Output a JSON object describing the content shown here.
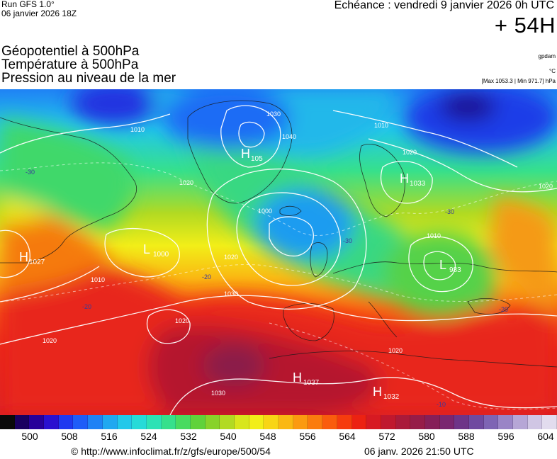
{
  "header": {
    "run": "Run GFS 1.0°",
    "run_date": "06 janvier 2026 18Z",
    "echeance": "Echéance : vendredi 9 janvier 2026 0h UTC",
    "lead": "+ 54H"
  },
  "titles": [
    "Géopotentiel à 500hPa",
    "Température à 500hPa",
    "Pression au niveau de la mer"
  ],
  "units": {
    "geopotential": "gpdam",
    "temperature": "°C",
    "pressure": "[Max 1053.3 | Min 971.7] hPa"
  },
  "map": {
    "pressure_centers": [
      {
        "type": "H",
        "value": "1027"
      },
      {
        "type": "L",
        "value": "1000"
      },
      {
        "type": "H",
        "value": "105"
      },
      {
        "type": "H",
        "value": "1033"
      },
      {
        "type": "L",
        "value": "983"
      },
      {
        "type": "H",
        "value": "1037"
      },
      {
        "type": "H",
        "value": "1032"
      }
    ],
    "isobar_labels": [
      "1010",
      "1020",
      "1030",
      "1040",
      "1000",
      "1010",
      "1020",
      "1010",
      "1020",
      "1020",
      "1010",
      "1020",
      "1030",
      "1030",
      "1020",
      "1020"
    ],
    "isotherm_labels": [
      "-30",
      "-20",
      "-20",
      "-30",
      "-30",
      "-20",
      "-10"
    ]
  },
  "legend": {
    "colors": [
      "#0a0a0a",
      "#1a0060",
      "#28009a",
      "#2a10d0",
      "#1f38f0",
      "#1e5cf8",
      "#1f82f5",
      "#20a8f0",
      "#22c8ea",
      "#26dbd8",
      "#2de2b5",
      "#36e08c",
      "#48db60",
      "#60d23a",
      "#88d22a",
      "#b2da22",
      "#d8e61c",
      "#f2ee18",
      "#f8d515",
      "#fab812",
      "#fb9a10",
      "#fb7c0e",
      "#fa5c0d",
      "#f63c0e",
      "#ec2212",
      "#d71a22",
      "#c0182e",
      "#aa1a3a",
      "#961c48",
      "#861f58",
      "#7a2670",
      "#6e3488",
      "#6f4aa0",
      "#7e64b4",
      "#9a84c6",
      "#b6a6d6",
      "#d0c6e4",
      "#e2dcee"
    ],
    "labels": [
      "500",
      "508",
      "516",
      "524",
      "532",
      "540",
      "548",
      "556",
      "564",
      "572",
      "580",
      "588",
      "596",
      "604"
    ]
  },
  "footer": {
    "copyright": "© http://www.infoclimat.fr/z/gfs/europe/500/54",
    "created": "06 janv. 2026 21:50 UTC"
  }
}
